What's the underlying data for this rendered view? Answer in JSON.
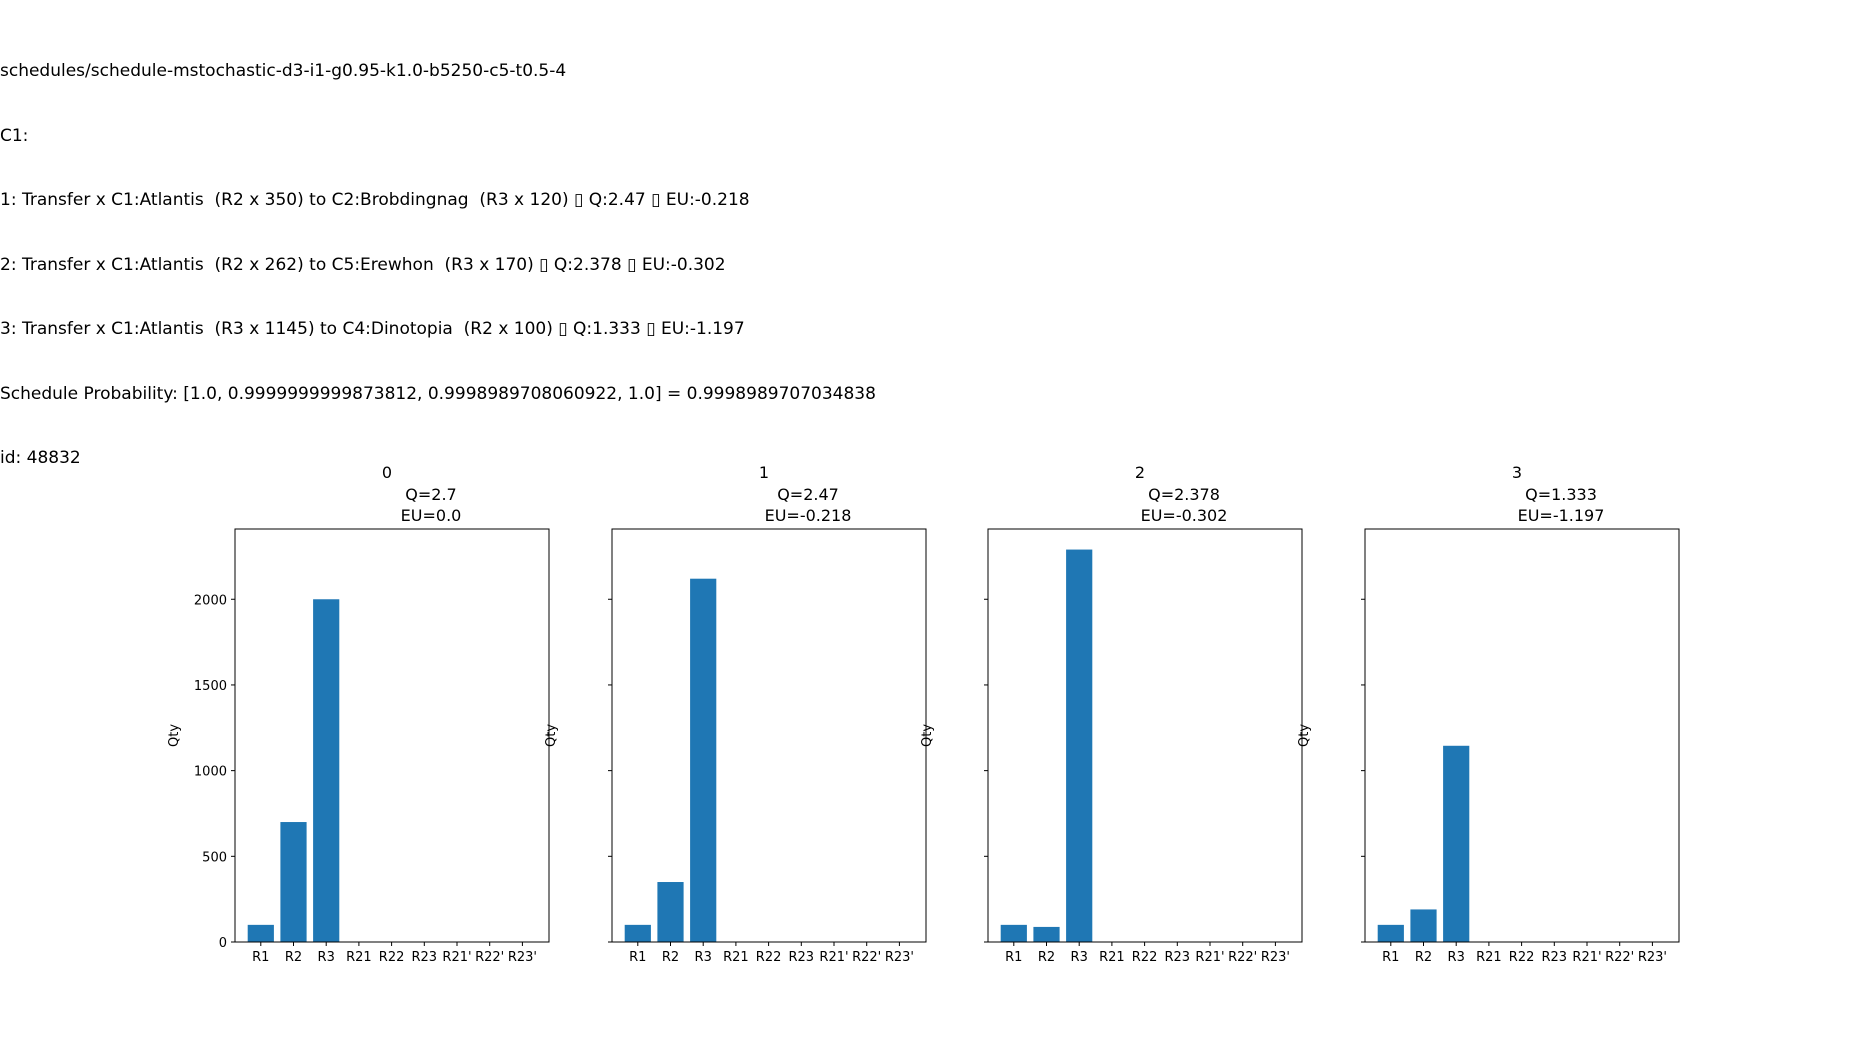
{
  "header": {
    "lines": [
      "schedules/schedule-mstochastic-d3-i1-g0.95-k1.0-b5250-c5-t0.5-4",
      "C1:",
      "1: Transfer x C1:Atlantis  (R2 x 350) to C2:Brobdingnag  (R3 x 120) ▯ Q:2.47 ▯ EU:-0.218",
      "2: Transfer x C1:Atlantis  (R2 x 262) to C5:Erewhon  (R3 x 170) ▯ Q:2.378 ▯ EU:-0.302",
      "3: Transfer x C1:Atlantis  (R3 x 1145) to C4:Dinotopia  (R2 x 100) ▯ Q:1.333 ▯ EU:-1.197",
      "Schedule Probability: [1.0, 0.9999999999873812, 0.9998989708060922, 1.0] = 0.9998989707034838",
      "id: 48832"
    ]
  },
  "colors": {
    "bar": "#1f77b4",
    "axis": "#000000",
    "background": "#ffffff"
  },
  "chart_data": [
    {
      "type": "bar",
      "title_lines": [
        "0",
        "Q=2.7",
        "EU=0.0"
      ],
      "ylabel": "Qty",
      "categories": [
        "R1",
        "R2",
        "R3",
        "R21",
        "R22",
        "R23",
        "R21'",
        "R22'",
        "R23'"
      ],
      "values": [
        100,
        700,
        2000,
        0,
        0,
        0,
        0,
        0,
        0
      ],
      "ylim": [
        0,
        2410
      ],
      "yticks": [
        0,
        500,
        1000,
        1500,
        2000
      ],
      "show_ytick_labels": true,
      "grid": false
    },
    {
      "type": "bar",
      "title_lines": [
        "1",
        "Q=2.47",
        "EU=-0.218"
      ],
      "ylabel": "Qty",
      "categories": [
        "R1",
        "R2",
        "R3",
        "R21",
        "R22",
        "R23",
        "R21'",
        "R22'",
        "R23'"
      ],
      "values": [
        100,
        350,
        2120,
        0,
        0,
        0,
        0,
        0,
        0
      ],
      "ylim": [
        0,
        2410
      ],
      "yticks": [
        0,
        500,
        1000,
        1500,
        2000
      ],
      "show_ytick_labels": false,
      "grid": false
    },
    {
      "type": "bar",
      "title_lines": [
        "2",
        "Q=2.378",
        "EU=-0.302"
      ],
      "ylabel": "Qty",
      "categories": [
        "R1",
        "R2",
        "R3",
        "R21",
        "R22",
        "R23",
        "R21'",
        "R22'",
        "R23'"
      ],
      "values": [
        100,
        88,
        2290,
        0,
        0,
        0,
        0,
        0,
        0
      ],
      "ylim": [
        0,
        2410
      ],
      "yticks": [
        0,
        500,
        1000,
        1500,
        2000
      ],
      "show_ytick_labels": false,
      "grid": false
    },
    {
      "type": "bar",
      "title_lines": [
        "3",
        "Q=1.333",
        "EU=-1.197"
      ],
      "ylabel": "Qty",
      "categories": [
        "R1",
        "R2",
        "R3",
        "R21",
        "R22",
        "R23",
        "R21'",
        "R22'",
        "R23'"
      ],
      "values": [
        100,
        190,
        1145,
        0,
        0,
        0,
        0,
        0,
        0
      ],
      "ylim": [
        0,
        2410
      ],
      "yticks": [
        0,
        500,
        1000,
        1500,
        2000
      ],
      "show_ytick_labels": false,
      "grid": false
    }
  ]
}
